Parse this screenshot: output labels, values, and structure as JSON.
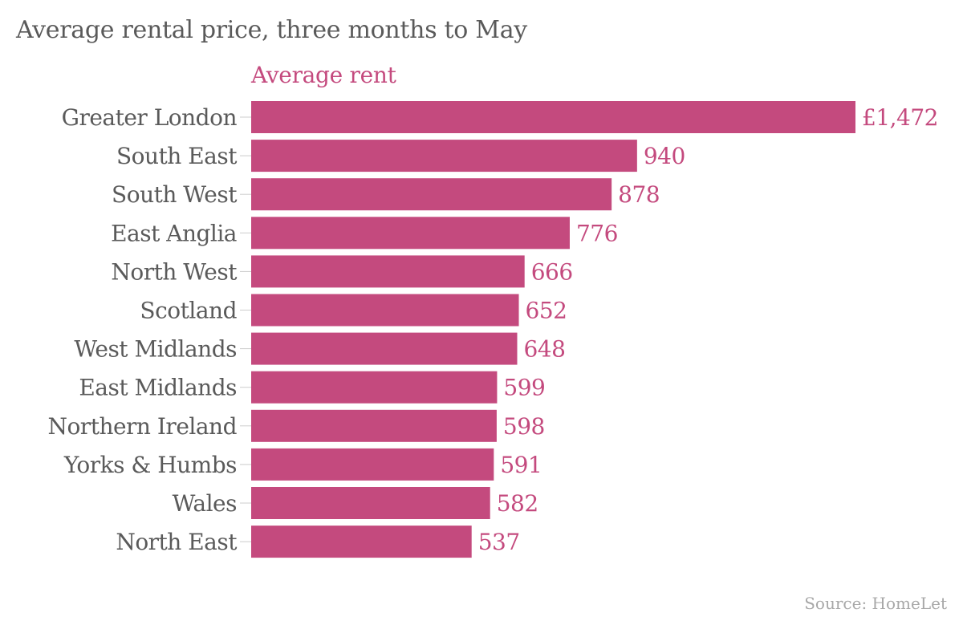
{
  "header": {
    "title": "Average rental price, three months to May"
  },
  "footer": {
    "source": "Source: HomeLet"
  },
  "colors": {
    "bar": "#c44a7e",
    "value_label": "#c44a7e",
    "category_label": "#5a5a5a",
    "tick": "#cccccc"
  },
  "chart_data": {
    "type": "bar",
    "orientation": "horizontal",
    "series": [
      {
        "name": "Average rent",
        "values": [
          1472,
          940,
          878,
          776,
          666,
          652,
          648,
          599,
          598,
          591,
          582,
          537
        ],
        "value_labels": [
          "£1,472",
          "940",
          "878",
          "776",
          "666",
          "652",
          "648",
          "599",
          "598",
          "591",
          "582",
          "537"
        ]
      }
    ],
    "categories": [
      "Greater London",
      "South East",
      "South West",
      "East Anglia",
      "North West",
      "Scotland",
      "West Midlands",
      "East Midlands",
      "Northern Ireland",
      "Yorks & Humbs",
      "Wales",
      "North East"
    ],
    "title": "Average rental price, three months to May",
    "xlabel": "",
    "ylabel": "",
    "xlim": [
      0,
      1472
    ],
    "grid": false,
    "legend": "none"
  }
}
